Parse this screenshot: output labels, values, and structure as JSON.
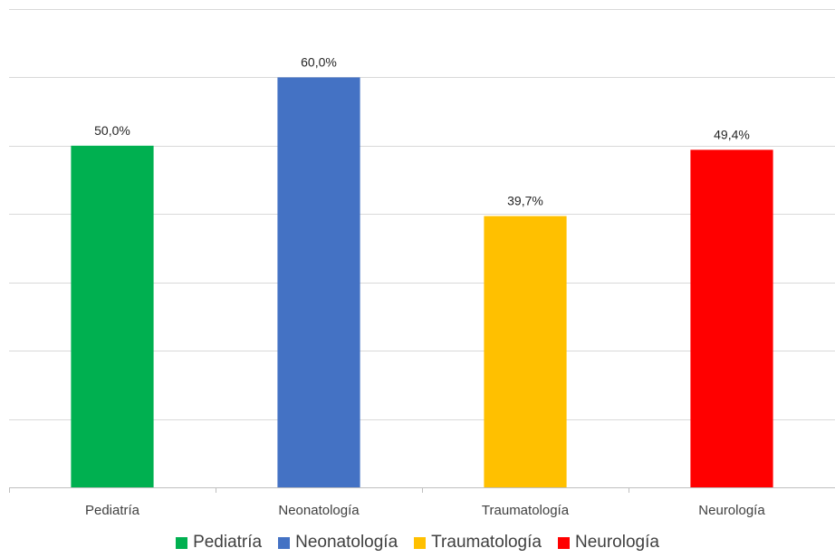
{
  "chart_data": {
    "type": "bar",
    "categories": [
      "Pediatría",
      "Neonatología",
      "Traumatología",
      "Neurología"
    ],
    "values": [
      50.0,
      60.0,
      39.7,
      49.4
    ],
    "data_labels": [
      "50,0%",
      "60,0%",
      "39,7%",
      "49,4%"
    ],
    "colors": [
      "#00B050",
      "#4472C4",
      "#FFC000",
      "#FF0000"
    ],
    "ylim": [
      0,
      70
    ],
    "y_gridline_step": 10,
    "grid": true,
    "legend_position": "bottom",
    "title": "",
    "xlabel": "",
    "ylabel": ""
  }
}
